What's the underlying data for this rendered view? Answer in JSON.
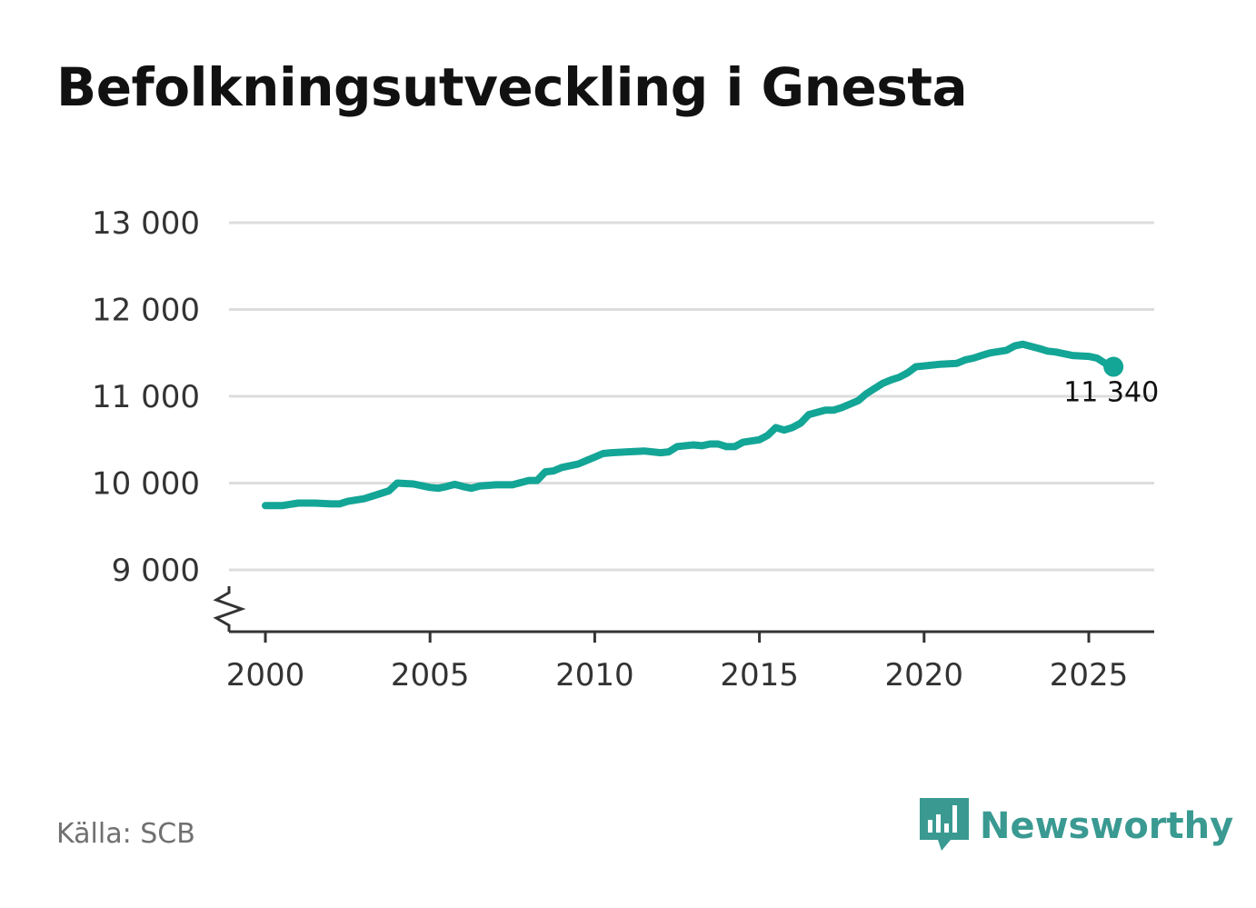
{
  "title": "Befolkningsutveckling i Gnesta",
  "source": "Källa: SCB",
  "brand": {
    "name": "Newsworthy",
    "logo_icon": "newsworthy-chart-logo-icon",
    "color": "#3a9a92"
  },
  "chart_data": {
    "type": "line",
    "ylim": [
      8300,
      13000
    ],
    "xlim": [
      1999.8,
      2026.9
    ],
    "y_ticks": [
      {
        "value": 9000,
        "label": "9 000"
      },
      {
        "value": 10000,
        "label": "10 000"
      },
      {
        "value": 11000,
        "label": "11 000"
      },
      {
        "value": 12000,
        "label": "12 000"
      },
      {
        "value": 13000,
        "label": "13 000"
      }
    ],
    "x_ticks": [
      {
        "value": 2000,
        "label": "2000"
      },
      {
        "value": 2005,
        "label": "2005"
      },
      {
        "value": 2010,
        "label": "2010"
      },
      {
        "value": 2015,
        "label": "2015"
      },
      {
        "value": 2020,
        "label": "2020"
      },
      {
        "value": 2025,
        "label": "2025"
      }
    ],
    "axis_break": true,
    "grid": true,
    "series": [
      {
        "color": "#13a596",
        "points": [
          [
            2000.0,
            9740
          ],
          [
            2000.5,
            9740
          ],
          [
            2001.0,
            9770
          ],
          [
            2001.5,
            9770
          ],
          [
            2002.0,
            9760
          ],
          [
            2002.25,
            9760
          ],
          [
            2002.5,
            9790
          ],
          [
            2003.0,
            9820
          ],
          [
            2003.5,
            9880
          ],
          [
            2003.75,
            9910
          ],
          [
            2004.0,
            10000
          ],
          [
            2004.5,
            9990
          ],
          [
            2005.0,
            9950
          ],
          [
            2005.25,
            9940
          ],
          [
            2005.5,
            9960
          ],
          [
            2005.75,
            9985
          ],
          [
            2006.0,
            9960
          ],
          [
            2006.25,
            9940
          ],
          [
            2006.5,
            9965
          ],
          [
            2007.0,
            9980
          ],
          [
            2007.5,
            9980
          ],
          [
            2008.0,
            10030
          ],
          [
            2008.25,
            10030
          ],
          [
            2008.5,
            10130
          ],
          [
            2008.75,
            10140
          ],
          [
            2009.0,
            10180
          ],
          [
            2009.5,
            10220
          ],
          [
            2009.75,
            10260
          ],
          [
            2010.0,
            10300
          ],
          [
            2010.25,
            10340
          ],
          [
            2010.5,
            10350
          ],
          [
            2011.0,
            10360
          ],
          [
            2011.5,
            10370
          ],
          [
            2012.0,
            10350
          ],
          [
            2012.25,
            10360
          ],
          [
            2012.5,
            10420
          ],
          [
            2013.0,
            10440
          ],
          [
            2013.25,
            10430
          ],
          [
            2013.5,
            10450
          ],
          [
            2013.75,
            10450
          ],
          [
            2014.0,
            10420
          ],
          [
            2014.25,
            10420
          ],
          [
            2014.5,
            10470
          ],
          [
            2015.0,
            10500
          ],
          [
            2015.25,
            10550
          ],
          [
            2015.5,
            10640
          ],
          [
            2015.75,
            10610
          ],
          [
            2016.0,
            10640
          ],
          [
            2016.25,
            10690
          ],
          [
            2016.5,
            10790
          ],
          [
            2017.0,
            10840
          ],
          [
            2017.25,
            10840
          ],
          [
            2017.5,
            10870
          ],
          [
            2018.0,
            10950
          ],
          [
            2018.25,
            11030
          ],
          [
            2018.5,
            11090
          ],
          [
            2018.75,
            11150
          ],
          [
            2019.0,
            11190
          ],
          [
            2019.25,
            11220
          ],
          [
            2019.5,
            11270
          ],
          [
            2019.75,
            11340
          ],
          [
            2020.0,
            11350
          ],
          [
            2020.5,
            11370
          ],
          [
            2021.0,
            11380
          ],
          [
            2021.25,
            11420
          ],
          [
            2021.5,
            11440
          ],
          [
            2021.75,
            11470
          ],
          [
            2022.0,
            11500
          ],
          [
            2022.5,
            11530
          ],
          [
            2022.75,
            11580
          ],
          [
            2023.0,
            11600
          ],
          [
            2023.5,
            11550
          ],
          [
            2023.75,
            11520
          ],
          [
            2024.0,
            11510
          ],
          [
            2024.5,
            11470
          ],
          [
            2025.0,
            11460
          ],
          [
            2025.25,
            11440
          ],
          [
            2025.5,
            11380
          ],
          [
            2025.75,
            11340
          ]
        ]
      }
    ],
    "end_label": {
      "value": 11340,
      "label": "11 340"
    }
  }
}
